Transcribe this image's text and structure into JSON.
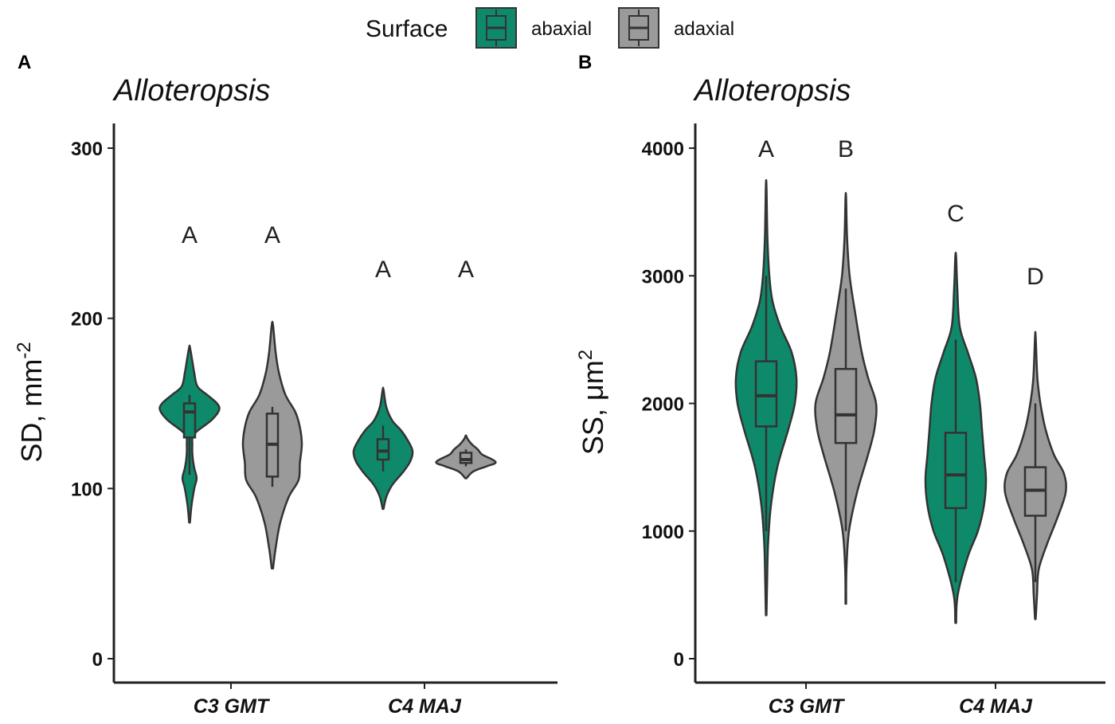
{
  "legend": {
    "title": "Surface",
    "items": [
      {
        "label": "abaxial",
        "color": "#0e8a6b"
      },
      {
        "label": "adaxial",
        "color": "#9a9a9a"
      }
    ]
  },
  "chart_data": [
    {
      "type": "violin",
      "panel": "A",
      "title": "Alloteropsis",
      "ylabel": "SD, mm",
      "ylabel_sup": "-2",
      "ylim": [
        0,
        300
      ],
      "yticks": [
        0,
        100,
        200,
        300
      ],
      "categories": [
        "C3 GMT",
        "C4 MAJ"
      ],
      "series": [
        {
          "name": "abaxial",
          "color": "#0e8a6b",
          "groups": [
            {
              "category": "C3 GMT",
              "min": 80,
              "max": 183,
              "q1": 130,
              "median": 145,
              "q3": 150,
              "whisker_low": 108,
              "whisker_high": 155,
              "letter": "A",
              "letter_y": 250,
              "density": [
                [
                  80,
                  0.01
                ],
                [
                  90,
                  0.05
                ],
                [
                  100,
                  0.12
                ],
                [
                  106,
                  0.18
                ],
                [
                  112,
                  0.12
                ],
                [
                  118,
                  0.08
                ],
                [
                  125,
                  0.07
                ],
                [
                  132,
                  0.12
                ],
                [
                  140,
                  0.55
                ],
                [
                  146,
                  0.75
                ],
                [
                  150,
                  0.7
                ],
                [
                  155,
                  0.45
                ],
                [
                  160,
                  0.2
                ],
                [
                  168,
                  0.12
                ],
                [
                  175,
                  0.07
                ],
                [
                  183,
                  0.01
                ]
              ]
            },
            {
              "category": "C4 MAJ",
              "min": 88,
              "max": 158,
              "q1": 117,
              "median": 122,
              "q3": 129,
              "whisker_low": 110,
              "whisker_high": 137,
              "letter": "A",
              "letter_y": 230,
              "density": [
                [
                  88,
                  0.01
                ],
                [
                  95,
                  0.07
                ],
                [
                  102,
                  0.2
                ],
                [
                  110,
                  0.45
                ],
                [
                  116,
                  0.6
                ],
                [
                  122,
                  0.65
                ],
                [
                  128,
                  0.55
                ],
                [
                  134,
                  0.4
                ],
                [
                  140,
                  0.2
                ],
                [
                  148,
                  0.07
                ],
                [
                  158,
                  0.01
                ]
              ]
            }
          ]
        },
        {
          "name": "adaxial",
          "color": "#9a9a9a",
          "groups": [
            {
              "category": "C3 GMT",
              "min": 53,
              "max": 196,
              "q1": 107,
              "median": 126,
              "q3": 144,
              "whisker_low": 101,
              "whisker_high": 148,
              "letter": "A",
              "letter_y": 250,
              "density": [
                [
                  53,
                  0.01
                ],
                [
                  65,
                  0.05
                ],
                [
                  80,
                  0.12
                ],
                [
                  95,
                  0.25
                ],
                [
                  105,
                  0.4
                ],
                [
                  115,
                  0.42
                ],
                [
                  126,
                  0.45
                ],
                [
                  136,
                  0.42
                ],
                [
                  145,
                  0.35
                ],
                [
                  155,
                  0.2
                ],
                [
                  168,
                  0.1
                ],
                [
                  180,
                  0.05
                ],
                [
                  196,
                  0.01
                ]
              ]
            },
            {
              "category": "C4 MAJ",
              "min": 106,
              "max": 131,
              "q1": 115,
              "median": 117,
              "q3": 121,
              "whisker_low": 113,
              "whisker_high": 123,
              "letter": "A",
              "letter_y": 230,
              "density": [
                [
                  106,
                  0.02
                ],
                [
                  110,
                  0.25
                ],
                [
                  113,
                  0.7
                ],
                [
                  115,
                  1.0
                ],
                [
                  117,
                  0.9
                ],
                [
                  120,
                  0.55
                ],
                [
                  123,
                  0.4
                ],
                [
                  126,
                  0.2
                ],
                [
                  129,
                  0.06
                ],
                [
                  131,
                  0.01
                ]
              ]
            }
          ]
        }
      ]
    },
    {
      "type": "violin",
      "panel": "B",
      "title": "Alloteropsis",
      "ylabel": "SS, μm",
      "ylabel_sup": "2",
      "ylim": [
        0,
        4000
      ],
      "yticks": [
        0,
        1000,
        2000,
        3000,
        4000
      ],
      "categories": [
        "C3 GMT",
        "C4 MAJ"
      ],
      "series": [
        {
          "name": "abaxial",
          "color": "#0e8a6b",
          "groups": [
            {
              "category": "C3 GMT",
              "min": 340,
              "max": 3700,
              "q1": 1820,
              "median": 2060,
              "q3": 2330,
              "whisker_low": 1000,
              "whisker_high": 3000,
              "letter": "A",
              "letter_y": 4000,
              "density": [
                [
                  340,
                  0.01
                ],
                [
                  600,
                  0.03
                ],
                [
                  900,
                  0.06
                ],
                [
                  1200,
                  0.15
                ],
                [
                  1500,
                  0.35
                ],
                [
                  1800,
                  0.7
                ],
                [
                  2000,
                  0.9
                ],
                [
                  2200,
                  0.95
                ],
                [
                  2400,
                  0.8
                ],
                [
                  2600,
                  0.45
                ],
                [
                  2800,
                  0.2
                ],
                [
                  3000,
                  0.1
                ],
                [
                  3300,
                  0.04
                ],
                [
                  3700,
                  0.01
                ]
              ]
            },
            {
              "category": "C4 MAJ",
              "min": 280,
              "max": 3150,
              "q1": 1180,
              "median": 1440,
              "q3": 1770,
              "whisker_low": 600,
              "whisker_high": 2500,
              "letter": "C",
              "letter_y": 3500,
              "density": [
                [
                  280,
                  0.01
                ],
                [
                  500,
                  0.05
                ],
                [
                  800,
                  0.3
                ],
                [
                  1000,
                  0.55
                ],
                [
                  1200,
                  0.7
                ],
                [
                  1400,
                  0.75
                ],
                [
                  1600,
                  0.7
                ],
                [
                  1800,
                  0.65
                ],
                [
                  2000,
                  0.6
                ],
                [
                  2200,
                  0.5
                ],
                [
                  2400,
                  0.3
                ],
                [
                  2600,
                  0.1
                ],
                [
                  2900,
                  0.04
                ],
                [
                  3150,
                  0.01
                ]
              ]
            }
          ]
        },
        {
          "name": "adaxial",
          "color": "#9a9a9a",
          "groups": [
            {
              "category": "C3 GMT",
              "min": 430,
              "max": 3610,
              "q1": 1690,
              "median": 1910,
              "q3": 2270,
              "whisker_low": 1000,
              "whisker_high": 2900,
              "letter": "B",
              "letter_y": 4000,
              "density": [
                [
                  430,
                  0.01
                ],
                [
                  700,
                  0.02
                ],
                [
                  1000,
                  0.1
                ],
                [
                  1300,
                  0.35
                ],
                [
                  1600,
                  0.7
                ],
                [
                  1800,
                  0.9
                ],
                [
                  2000,
                  0.95
                ],
                [
                  2200,
                  0.7
                ],
                [
                  2400,
                  0.5
                ],
                [
                  2700,
                  0.3
                ],
                [
                  3000,
                  0.12
                ],
                [
                  3300,
                  0.04
                ],
                [
                  3610,
                  0.01
                ]
              ]
            },
            {
              "category": "C4 MAJ",
              "min": 310,
              "max": 2520,
              "q1": 1120,
              "median": 1320,
              "q3": 1500,
              "whisker_low": 600,
              "whisker_high": 2000,
              "letter": "D",
              "letter_y": 3000,
              "density": [
                [
                  310,
                  0.01
                ],
                [
                  500,
                  0.05
                ],
                [
                  700,
                  0.1
                ],
                [
                  900,
                  0.35
                ],
                [
                  1100,
                  0.65
                ],
                [
                  1300,
                  0.9
                ],
                [
                  1450,
                  0.85
                ],
                [
                  1600,
                  0.55
                ],
                [
                  1800,
                  0.3
                ],
                [
                  2000,
                  0.15
                ],
                [
                  2200,
                  0.06
                ],
                [
                  2520,
                  0.01
                ]
              ]
            }
          ]
        }
      ]
    }
  ]
}
